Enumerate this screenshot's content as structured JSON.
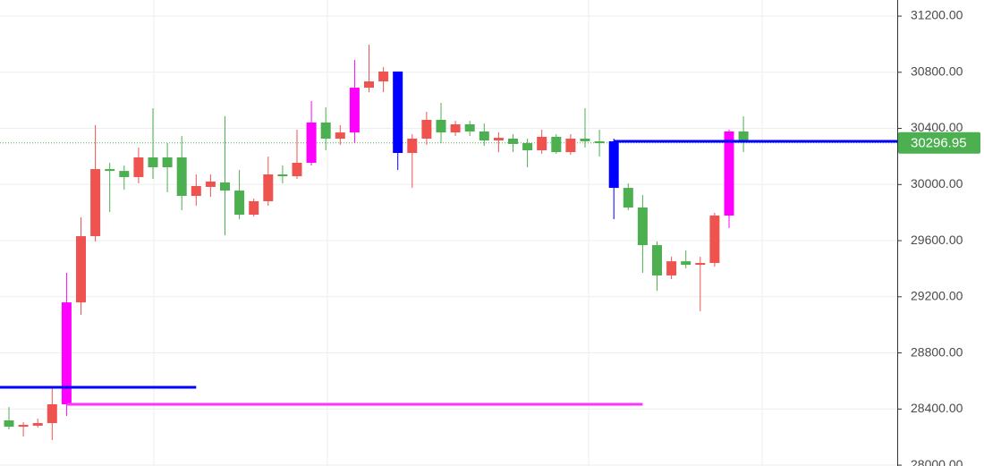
{
  "chart_data": {
    "type": "candlestick",
    "ylim": [
      27994,
      31315
    ],
    "yticks": [
      {
        "value": 28000,
        "label": "28000.00"
      },
      {
        "value": 28400,
        "label": "28400.00"
      },
      {
        "value": 28800,
        "label": "28800.00"
      },
      {
        "value": 29200,
        "label": "29200.00"
      },
      {
        "value": 29600,
        "label": "29600.00"
      },
      {
        "value": 30000,
        "label": "30000.00"
      },
      {
        "value": 30400,
        "label": "30400.00"
      },
      {
        "value": 30800,
        "label": "30800.00"
      },
      {
        "value": 31200,
        "label": "31200.00"
      }
    ],
    "grid": true,
    "open": [
      28319,
      28274,
      28281,
      28300,
      28434,
      29160,
      29632,
      30110,
      30097,
      30053,
      30193,
      30193,
      30193,
      29919,
      29983,
      30015,
      29957,
      29785,
      29881,
      30072,
      30059,
      30155,
      30442,
      30327,
      30371,
      30690,
      30735,
      30805,
      30225,
      30327,
      30461,
      30371,
      30429,
      30378,
      30314,
      30327,
      30295,
      30244,
      30340,
      30231,
      30327,
      30308,
      30308,
      29976,
      29836,
      29568,
      29352,
      29453,
      29428,
      29441,
      29779,
      30378
    ],
    "high": [
      28414,
      28306,
      28332,
      28561,
      29371,
      29766,
      30423,
      30155,
      30136,
      30263,
      30544,
      30295,
      30346,
      30072,
      30072,
      30486,
      30104,
      29900,
      30199,
      30136,
      30391,
      30595,
      30550,
      30423,
      30888,
      30996,
      30837,
      30805,
      30359,
      30518,
      30582,
      30454,
      30454,
      30435,
      30371,
      30359,
      30327,
      30391,
      30359,
      30359,
      30544,
      30391,
      30327,
      30008,
      29925,
      29594,
      29485,
      29530,
      29485,
      29798,
      30391,
      30486
    ],
    "low": [
      28255,
      28204,
      28268,
      28179,
      28351,
      29071,
      29594,
      29804,
      29963,
      30008,
      30040,
      29945,
      29817,
      29849,
      29912,
      29638,
      29753,
      29772,
      29849,
      30008,
      30040,
      30136,
      30244,
      30282,
      30295,
      30658,
      30658,
      30104,
      29976,
      30282,
      30295,
      30346,
      30346,
      30276,
      30231,
      30231,
      30123,
      30219,
      30219,
      30212,
      30263,
      30199,
      29753,
      29817,
      29371,
      29243,
      29326,
      29402,
      29097,
      29415,
      29690,
      30231
    ],
    "close": [
      28274,
      28287,
      28300,
      28434,
      29160,
      29632,
      30110,
      30097,
      30053,
      30193,
      30123,
      30123,
      29919,
      29989,
      30021,
      29957,
      29785,
      29881,
      30072,
      30059,
      30155,
      30442,
      30327,
      30371,
      30690,
      30735,
      30805,
      30225,
      30327,
      30461,
      30371,
      30429,
      30378,
      30314,
      30333,
      30289,
      30244,
      30340,
      30231,
      30327,
      30308,
      30295,
      29976,
      29836,
      29568,
      29352,
      29453,
      29428,
      29441,
      29779,
      30378,
      30308
    ],
    "colors": [
      "#4caf50",
      "#ef5350",
      "#ef5350",
      "#ef5350",
      "#ff00ff",
      "#ef5350",
      "#ef5350",
      "#4caf50",
      "#4caf50",
      "#ef5350",
      "#4caf50",
      "#4caf50",
      "#4caf50",
      "#ef5350",
      "#ef5350",
      "#4caf50",
      "#4caf50",
      "#ef5350",
      "#ef5350",
      "#4caf50",
      "#ef5350",
      "#ff00ff",
      "#4caf50",
      "#ef5350",
      "#ff00ff",
      "#ef5350",
      "#ef5350",
      "#0000ff",
      "#ef5350",
      "#ef5350",
      "#4caf50",
      "#ef5350",
      "#4caf50",
      "#4caf50",
      "#ef5350",
      "#4caf50",
      "#4caf50",
      "#ef5350",
      "#4caf50",
      "#ef5350",
      "#4caf50",
      "#4caf50",
      "#0000ff",
      "#4caf50",
      "#4caf50",
      "#4caf50",
      "#ef5350",
      "#4caf50",
      "#ef5350",
      "#ef5350",
      "#ff00ff",
      "#4caf50"
    ],
    "levels": [
      {
        "value": 28555,
        "color": "#0000ff",
        "start": 0,
        "end": 13
      },
      {
        "value": 28434,
        "color": "#ff33ff",
        "start": 4,
        "end": 44
      },
      {
        "value": 30308,
        "color": "#0000ff",
        "start": 42,
        "end": null
      }
    ],
    "last_price": 30296.95,
    "last_price_color": "#4caf50"
  }
}
